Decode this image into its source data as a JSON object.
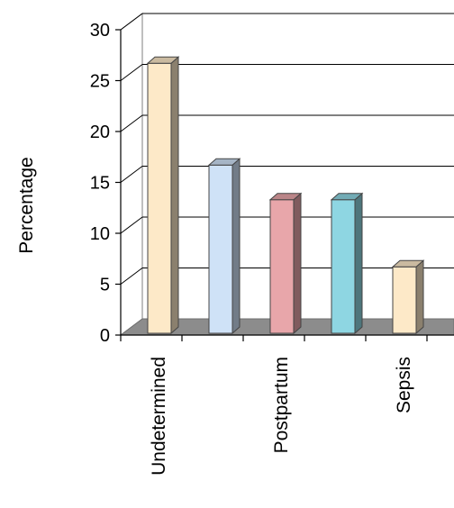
{
  "chart_data": {
    "type": "bar",
    "title": "",
    "xlabel": "",
    "ylabel": "Percentage",
    "ylim": [
      0,
      30
    ],
    "y_ticks": [
      0,
      5,
      10,
      15,
      20,
      25,
      30
    ],
    "grid": true,
    "categories": [
      "Undetermined",
      "",
      "Postpartum",
      "",
      "Sepsis",
      ""
    ],
    "values": [
      26.7,
      16.7,
      13.3,
      13.3,
      6.7,
      null
    ],
    "bar_colors": [
      "#fde9c8",
      "#cfe2f7",
      "#e8a6aa",
      "#8ed6e2",
      "#fde9c8",
      ""
    ]
  }
}
